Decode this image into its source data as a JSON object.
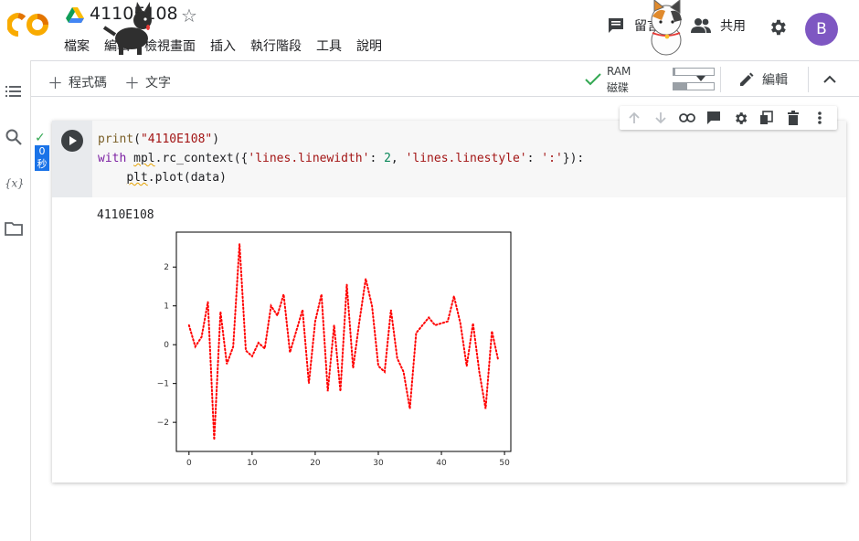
{
  "header": {
    "notebook_title": "4110E108",
    "menu": [
      "檔案",
      "編輯",
      "檢視畫面",
      "插入",
      "執行階段",
      "工具",
      "說明"
    ],
    "comment_label": "留言",
    "share_label": "共用",
    "avatar_letter": "B"
  },
  "toolbar": {
    "add_code_label": "程式碼",
    "add_text_label": "文字",
    "ram_label": "RAM",
    "disk_label": "磁碟",
    "ram_fill_pct": 4,
    "disk_fill_pct": 35,
    "edit_label": "編輯"
  },
  "cell": {
    "exec_time": "0",
    "exec_unit": "秒",
    "output_text": "4110E108",
    "code_lines": [
      "print(\"4110E108\")",
      "with mpl.rc_context({'lines.linewidth': 2, 'lines.linestyle': ':'}):",
      "    plt.plot(data)"
    ]
  },
  "chart_data": {
    "type": "line",
    "line_style": "dotted",
    "color": "#ff0000",
    "xlim": [
      -2,
      51
    ],
    "ylim": [
      -2.75,
      2.9
    ],
    "xticks": [
      0,
      10,
      20,
      30,
      40,
      50
    ],
    "yticks": [
      2,
      1,
      0,
      -1,
      -2
    ],
    "x": [
      0,
      1,
      2,
      3,
      4,
      5,
      6,
      7,
      8,
      9,
      10,
      11,
      12,
      13,
      14,
      15,
      16,
      17,
      18,
      19,
      20,
      21,
      22,
      23,
      24,
      25,
      26,
      27,
      28,
      29,
      30,
      31,
      32,
      33,
      34,
      35,
      36,
      37,
      38,
      39,
      40,
      41,
      42,
      43,
      44,
      45,
      46,
      47,
      48,
      49
    ],
    "y": [
      0.5,
      -0.05,
      0.2,
      1.1,
      -2.45,
      0.85,
      -0.5,
      -0.05,
      2.6,
      -0.15,
      -0.3,
      0.05,
      -0.1,
      1.0,
      0.75,
      1.3,
      -0.2,
      0.35,
      0.9,
      -1.0,
      0.6,
      1.3,
      -1.2,
      0.5,
      -1.2,
      1.55,
      -0.6,
      0.6,
      1.7,
      1.0,
      -0.55,
      -0.7,
      0.9,
      -0.35,
      -0.7,
      -1.65,
      0.3,
      0.5,
      0.7,
      0.5,
      0.55,
      0.6,
      1.25,
      0.55,
      -0.55,
      0.55,
      -0.7,
      -1.65,
      0.35,
      -0.4
    ]
  }
}
